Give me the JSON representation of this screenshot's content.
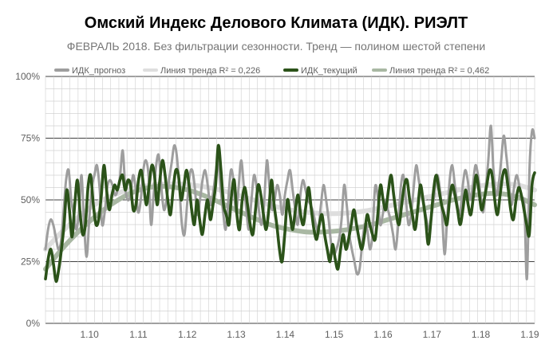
{
  "chart_data": {
    "type": "line",
    "title": "Омский Индекс Делового Климата (ИДК). РИЭЛТ",
    "subtitle": "ФЕВРАЛЬ 2018. Без фильтрации сезонности. Тренд — полином шестой степени",
    "xlabel": "",
    "ylabel": "",
    "ylim": [
      0,
      100
    ],
    "y_ticks": [
      "0%",
      "25%",
      "50%",
      "75%",
      "100%"
    ],
    "x_ticks": [
      "1.10",
      "1.11",
      "1.12",
      "1.13",
      "1.14",
      "1.15",
      "1.16",
      "1.17",
      "1.18",
      "1.19"
    ],
    "x_range": [
      "2009-07",
      "2019-03"
    ],
    "grid": "on",
    "legend_position": "top",
    "series": [
      {
        "name": "ИДК_прогноз",
        "color": "#9e9e9e",
        "values": [
          30,
          38,
          42,
          40,
          35,
          30,
          33,
          45,
          58,
          62,
          50,
          44,
          38,
          45,
          60,
          40,
          27,
          42,
          55,
          60,
          64,
          55,
          40,
          45,
          55,
          58,
          56,
          52,
          54,
          60,
          70,
          55,
          50,
          52,
          60,
          55,
          45,
          50,
          62,
          66,
          60,
          40,
          52,
          64,
          68,
          55,
          46,
          50,
          58,
          65,
          72,
          68,
          55,
          40,
          36,
          48,
          60,
          62,
          55,
          44,
          50,
          58,
          62,
          56,
          48,
          52,
          60,
          66,
          55,
          45,
          38,
          50,
          62,
          58,
          45,
          55,
          66,
          56,
          46,
          38,
          50,
          60,
          55,
          45,
          40,
          50,
          66,
          55,
          46,
          50,
          56,
          52,
          44,
          52,
          58,
          62,
          54,
          46,
          40,
          52,
          58,
          54,
          50,
          48,
          45,
          40,
          38,
          48,
          56,
          50,
          42,
          32,
          28,
          30,
          34,
          42,
          56,
          48,
          36,
          30,
          25,
          20,
          22,
          32,
          40,
          38,
          30,
          36,
          55,
          52,
          40,
          44,
          50,
          46,
          42,
          36,
          30,
          40,
          55,
          60,
          50,
          40,
          44,
          55,
          64,
          58,
          52,
          48,
          42,
          38,
          44,
          52,
          60,
          56,
          45,
          28,
          42,
          58,
          64,
          56,
          48,
          44,
          55,
          62,
          58,
          50,
          56,
          64,
          60,
          52,
          45,
          55,
          66,
          80,
          62,
          52,
          56,
          66,
          76,
          68,
          58,
          48,
          55,
          60,
          56,
          50,
          48,
          18,
          62,
          78,
          75
        ]
      },
      {
        "name": "Линия тренда R² = 0,226",
        "color": "#dedede",
        "values": [
          30,
          37,
          43,
          48,
          51.5,
          54,
          55.5,
          56.3,
          56.5,
          56,
          55,
          53.5,
          51.5,
          49.5,
          47.5,
          46,
          45,
          44.5,
          44.5,
          45,
          46,
          47.5,
          49,
          50.5,
          52,
          53.5,
          55,
          56,
          56.5,
          56,
          54
        ]
      },
      {
        "name": "ИДК_текущий",
        "color": "#2b5219",
        "values": [
          18,
          26,
          30,
          24,
          17,
          22,
          30,
          40,
          54,
          46,
          35,
          48,
          58,
          45,
          36,
          40,
          55,
          60,
          48,
          40,
          42,
          52,
          64,
          54,
          46,
          52,
          56,
          54,
          58,
          60,
          54,
          58,
          56,
          46,
          48,
          58,
          62,
          55,
          48,
          56,
          64,
          60,
          48,
          58,
          66,
          60,
          50,
          44,
          54,
          62,
          60,
          50,
          55,
          62,
          56,
          46,
          40,
          50,
          42,
          36,
          44,
          50,
          42,
          48,
          56,
          72,
          62,
          48,
          44,
          40,
          52,
          58,
          44,
          38,
          50,
          55,
          48,
          40,
          36,
          46,
          56,
          52,
          44,
          38,
          46,
          58,
          48,
          40,
          30,
          25,
          36,
          50,
          44,
          38,
          46,
          52,
          44,
          40,
          48,
          55,
          46,
          38,
          34,
          40,
          44,
          36,
          30,
          25,
          32,
          26,
          22,
          30,
          36,
          30,
          34,
          40,
          46,
          40,
          34,
          30,
          36,
          44,
          40,
          36,
          34,
          44,
          56,
          50,
          46,
          54,
          60,
          52,
          44,
          40,
          48,
          56,
          58,
          50,
          44,
          38,
          46,
          56,
          50,
          42,
          32,
          42,
          54,
          60,
          54,
          48,
          44,
          40,
          50,
          56,
          52,
          46,
          40,
          46,
          54,
          48,
          44,
          52,
          60,
          54,
          46,
          50,
          56,
          62,
          60,
          50,
          44,
          52,
          60,
          62,
          55,
          46,
          42,
          50,
          55,
          52,
          46,
          40,
          36,
          56,
          61
        ]
      },
      {
        "name": "Линия тренда R² = 0,462",
        "color": "#a9b8a3",
        "values": [
          22,
          30,
          37,
          43,
          48,
          52,
          54.5,
          55.5,
          55,
          53.5,
          51,
          48,
          45,
          42,
          39.5,
          38,
          37,
          37,
          37.5,
          38.5,
          40,
          42,
          44,
          46,
          48,
          50,
          51.5,
          52.5,
          52.5,
          51,
          48
        ]
      }
    ]
  }
}
